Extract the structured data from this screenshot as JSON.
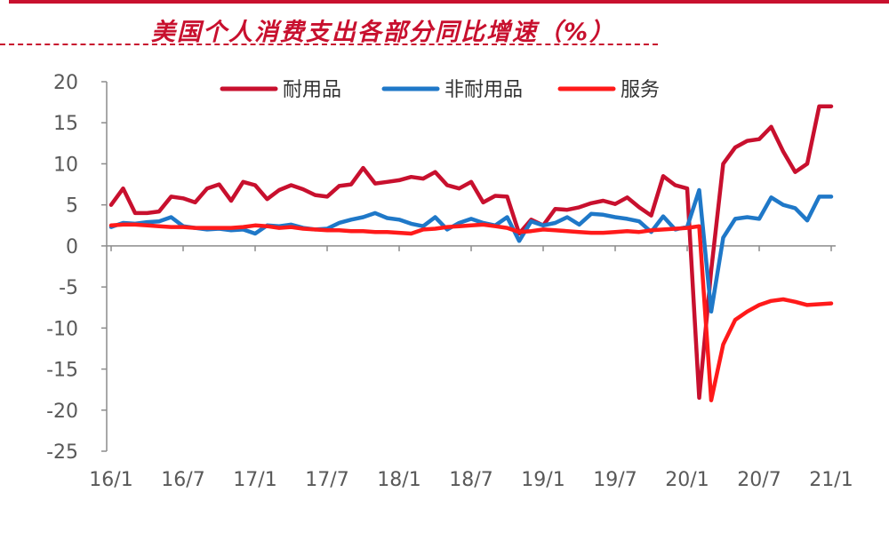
{
  "chart_data": {
    "type": "line",
    "title": "美国个人消费支出各部分同比增速（%）",
    "ylim": [
      -25,
      20
    ],
    "yticks": [
      20,
      15,
      10,
      5,
      0,
      -5,
      -10,
      -15,
      -20,
      -25
    ],
    "x_tick_labels": [
      "16/1",
      "16/7",
      "17/1",
      "17/7",
      "18/1",
      "18/7",
      "19/1",
      "19/7",
      "20/1",
      "20/7",
      "21/1"
    ],
    "grid": false,
    "legend": "top-center",
    "x": [
      "2016-01",
      "2016-02",
      "2016-03",
      "2016-04",
      "2016-05",
      "2016-06",
      "2016-07",
      "2016-08",
      "2016-09",
      "2016-10",
      "2016-11",
      "2016-12",
      "2017-01",
      "2017-02",
      "2017-03",
      "2017-04",
      "2017-05",
      "2017-06",
      "2017-07",
      "2017-08",
      "2017-09",
      "2017-10",
      "2017-11",
      "2017-12",
      "2018-01",
      "2018-02",
      "2018-03",
      "2018-04",
      "2018-05",
      "2018-06",
      "2018-07",
      "2018-08",
      "2018-09",
      "2018-10",
      "2018-11",
      "2018-12",
      "2019-01",
      "2019-02",
      "2019-03",
      "2019-04",
      "2019-05",
      "2019-06",
      "2019-07",
      "2019-08",
      "2019-09",
      "2019-10",
      "2019-11",
      "2019-12",
      "2020-01",
      "2020-02",
      "2020-03",
      "2020-04",
      "2020-05",
      "2020-06",
      "2020-07",
      "2020-08",
      "2020-09",
      "2020-10",
      "2020-11",
      "2020-12",
      "2021-01"
    ],
    "series": [
      {
        "name": "耐用品",
        "color": "#c8102e",
        "values": [
          5.0,
          7.0,
          4.0,
          4.0,
          4.2,
          6.0,
          5.8,
          5.3,
          7.0,
          7.5,
          5.5,
          7.8,
          7.4,
          5.7,
          6.8,
          7.4,
          6.9,
          6.2,
          6.0,
          7.3,
          7.5,
          9.5,
          7.6,
          7.8,
          8.0,
          8.4,
          8.2,
          9.0,
          7.4,
          7.0,
          7.8,
          5.3,
          6.1,
          6.0,
          1.5,
          3.2,
          2.5,
          4.5,
          4.4,
          4.7,
          5.2,
          5.5,
          5.1,
          5.9,
          4.7,
          3.7,
          8.5,
          7.4,
          7.0,
          -18.5,
          -3.0,
          10.0,
          12.0,
          12.8,
          13.0,
          14.5,
          11.5,
          9.0,
          10.0,
          17.0,
          17.0
        ]
      },
      {
        "name": "非耐用品",
        "color": "#1f78c8",
        "values": [
          2.3,
          2.8,
          2.7,
          2.9,
          3.0,
          3.5,
          2.4,
          2.2,
          2.0,
          2.1,
          1.9,
          2.0,
          1.5,
          2.5,
          2.4,
          2.6,
          2.2,
          2.0,
          2.1,
          2.8,
          3.2,
          3.5,
          4.0,
          3.4,
          3.2,
          2.7,
          2.4,
          3.5,
          2.0,
          2.8,
          3.3,
          2.8,
          2.5,
          3.5,
          0.6,
          3.0,
          2.5,
          2.8,
          3.5,
          2.6,
          3.9,
          3.8,
          3.5,
          3.3,
          3.0,
          1.7,
          3.6,
          2.0,
          2.3,
          6.8,
          -8.0,
          1.0,
          3.3,
          3.5,
          3.3,
          5.9,
          5.0,
          4.6,
          3.1,
          6.0,
          6.0
        ]
      },
      {
        "name": "服务",
        "color": "#ff1a1a",
        "values": [
          2.5,
          2.6,
          2.6,
          2.5,
          2.4,
          2.3,
          2.3,
          2.2,
          2.2,
          2.2,
          2.2,
          2.3,
          2.5,
          2.4,
          2.2,
          2.3,
          2.1,
          2.0,
          1.9,
          1.9,
          1.8,
          1.8,
          1.7,
          1.7,
          1.6,
          1.5,
          2.0,
          2.1,
          2.3,
          2.4,
          2.5,
          2.6,
          2.4,
          2.2,
          1.7,
          1.8,
          2.0,
          1.9,
          1.8,
          1.7,
          1.6,
          1.6,
          1.7,
          1.8,
          1.7,
          1.9,
          2.0,
          2.1,
          2.2,
          2.4,
          -18.8,
          -12.0,
          -9.0,
          -8.0,
          -7.2,
          -6.7,
          -6.5,
          -6.8,
          -7.2,
          -7.1,
          -7.0
        ]
      }
    ]
  }
}
